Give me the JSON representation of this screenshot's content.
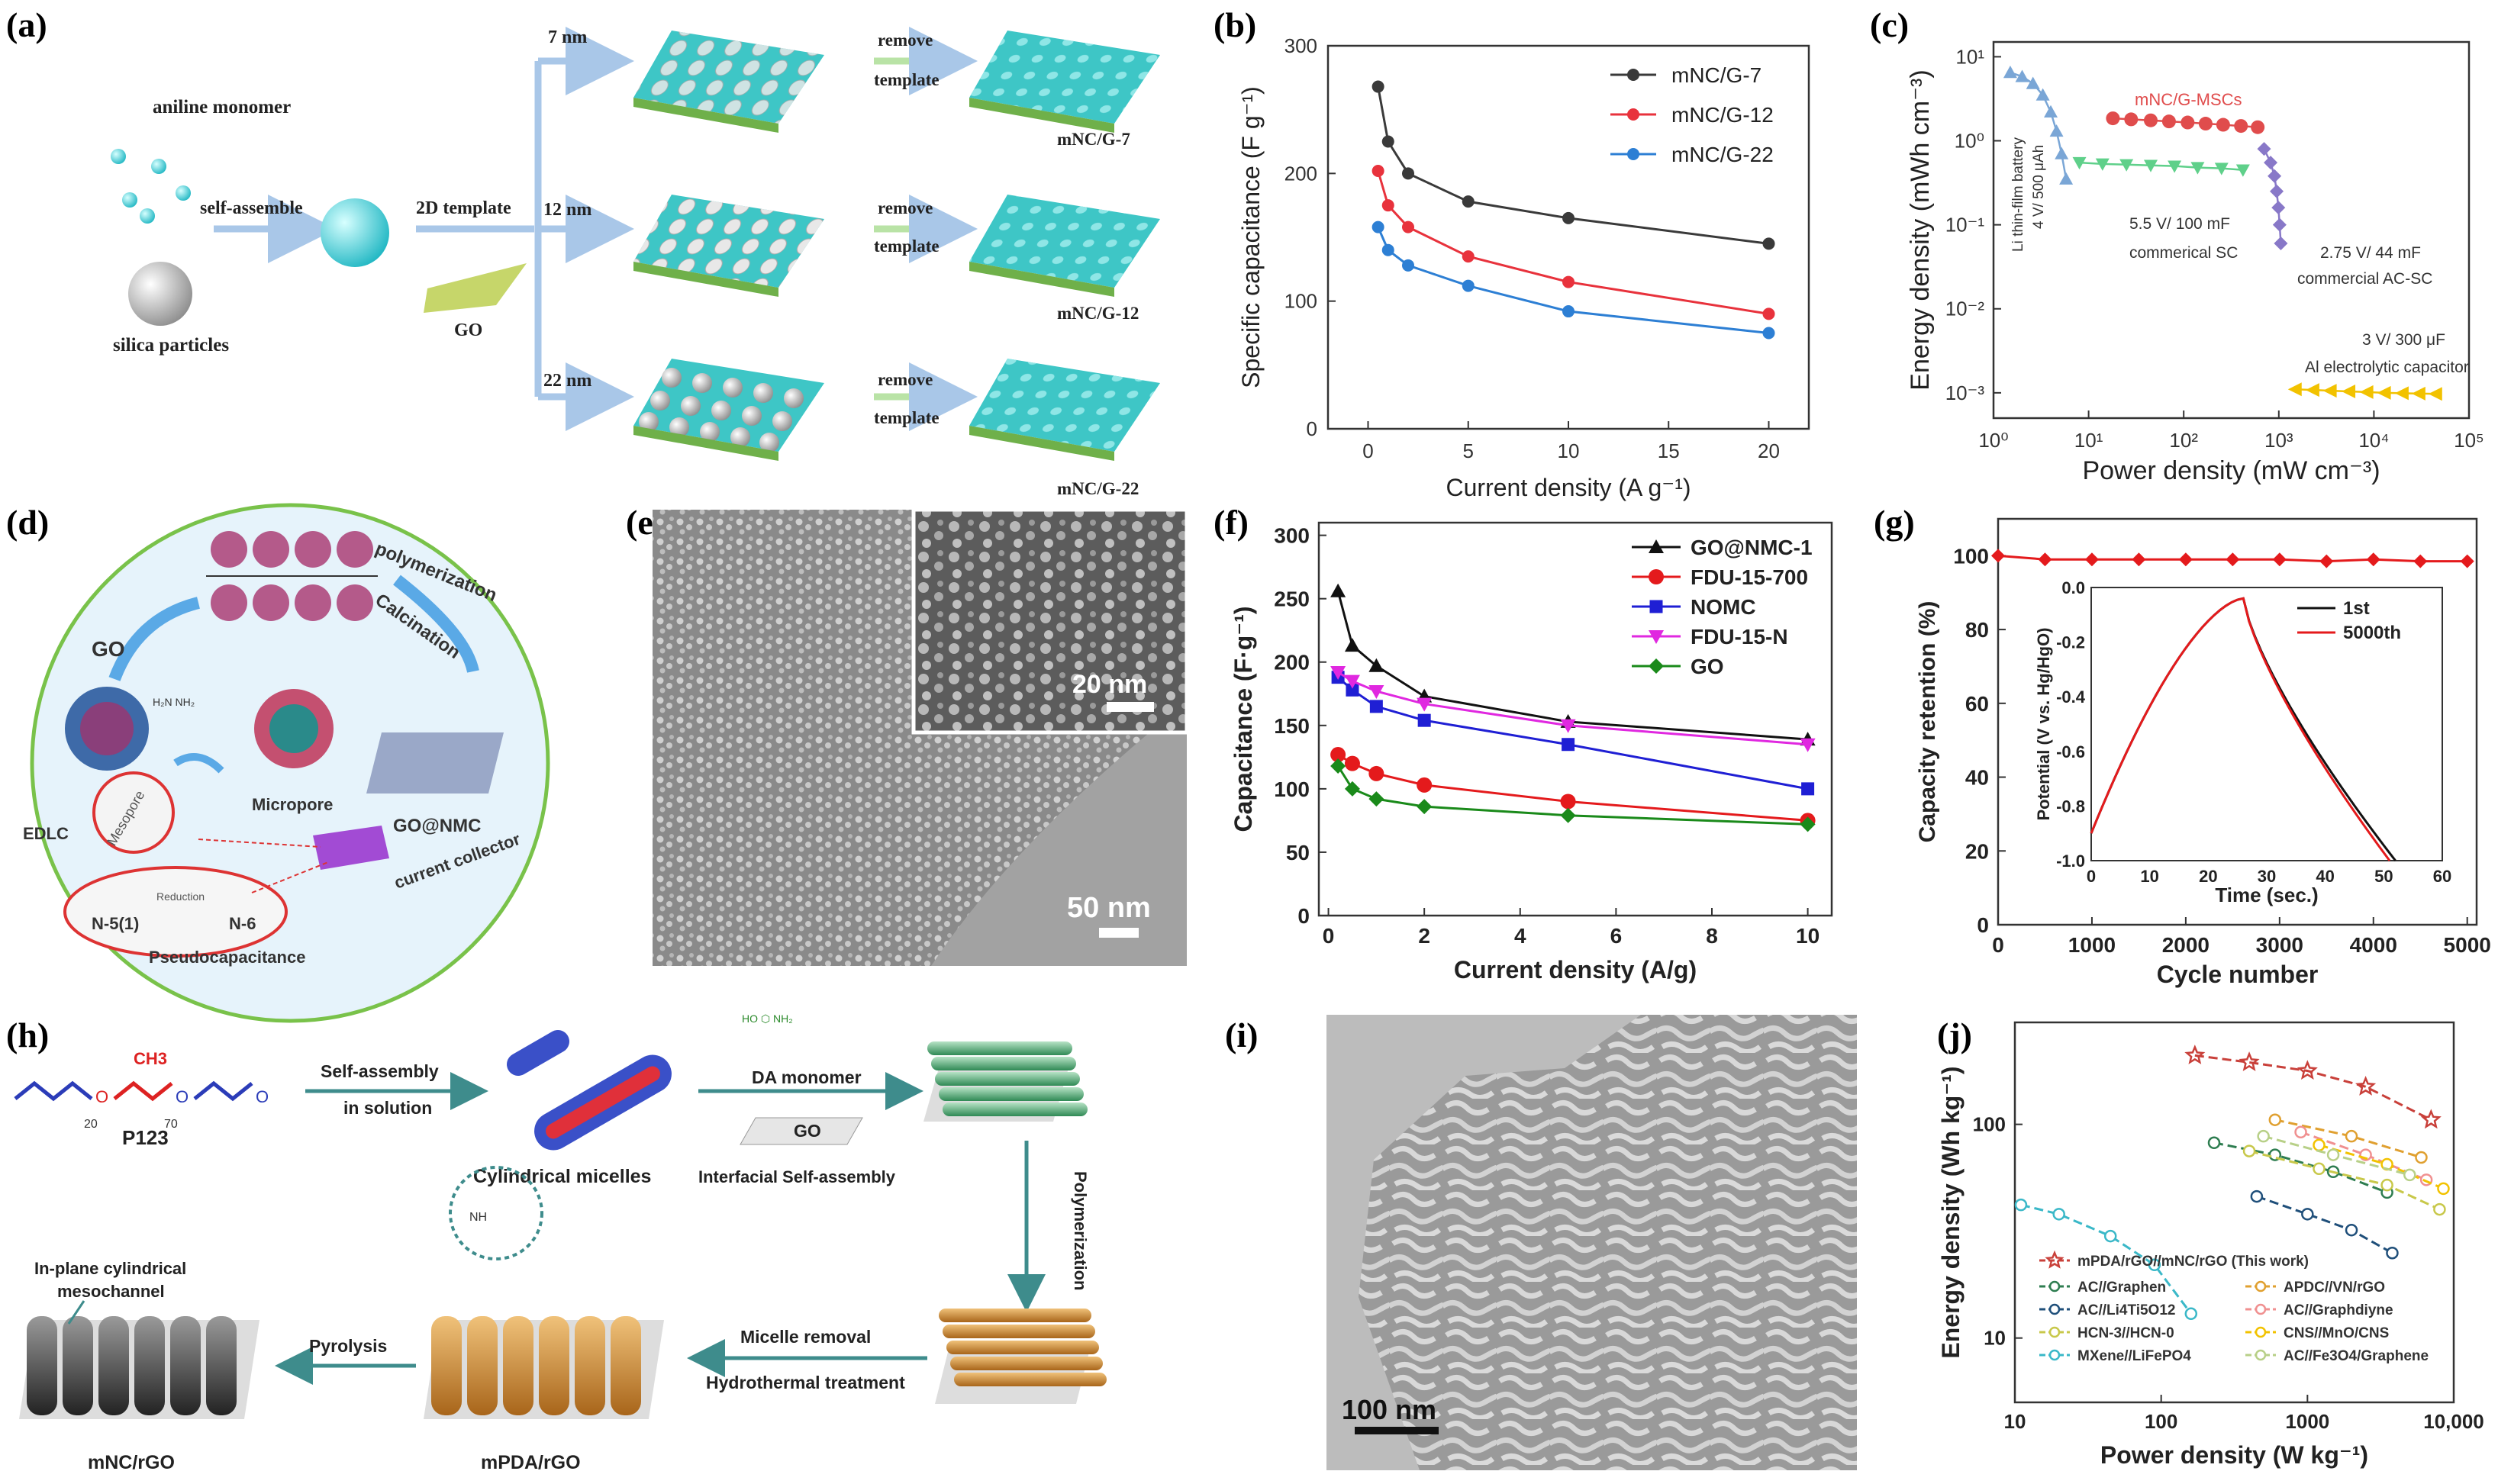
{
  "panel_labels": {
    "a": "(a)",
    "b": "(b)",
    "c": "(c)",
    "d": "(d)",
    "e": "(e)",
    "f": "(f)",
    "g": "(g)",
    "h": "(h)",
    "i": "(i)",
    "j": "(j)"
  },
  "panel_a": {
    "aniline": "aniline monomer",
    "silica": "silica particles",
    "self_assemble": "self-assemble",
    "template": "2D template",
    "go": "GO",
    "size_7": "7 nm",
    "size_12": "12 nm",
    "size_22": "22 nm",
    "remove": "remove",
    "template_word": "template",
    "out_7": "mNC/G-7",
    "out_12": "mNC/G-12",
    "out_22": "mNC/G-22"
  },
  "panel_c_labels": {
    "msc": "mNC/G-MSCs",
    "li": "Li thin-film battery",
    "li_spec": "4 V/ 500 μAh",
    "sc1": "5.5 V/ 100 mF",
    "sc1b": "commerical SC",
    "sc2": "2.75 V/ 44 mF",
    "sc2b": "commercial AC-SC",
    "al1": "3 V/ 300 μF",
    "al2": "Al electrolytic capacitor"
  },
  "panel_d": {
    "go": "GO",
    "polymerization": "polymerization",
    "calcination": "Calcination",
    "micropore": "Micropore",
    "mesopore": "Mesopore",
    "edlc": "EDLC",
    "gonmc": "GO@NMC",
    "current_collector": "current collector",
    "n5": "N-5(1)",
    "n6": "N-6",
    "reduction": "Reduction",
    "pseudo": "Pseudocapacitance"
  },
  "panel_e": {
    "scale_main": "50 nm",
    "scale_inset": "20 nm"
  },
  "panel_h": {
    "p123": "P123",
    "self_assembly": "Self-assembly",
    "in_solution": "in solution",
    "cyl": "Cylindrical micelles",
    "da": "DA monomer",
    "go": "GO",
    "interfacial": "Interfacial Self-assembly",
    "polymerization": "Polymerization",
    "micelle_removal": "Micelle removal",
    "hydrothermal": "Hydrothermal treatment",
    "pyrolysis": "Pyrolysis",
    "inplane": "In-plane cylindrical",
    "mesochannel": "mesochannel",
    "mpda": "mPDA/rGO",
    "mnc": "mNC/rGO",
    "sub_20": "20",
    "sub_70": "70",
    "ch3": "CH3"
  },
  "panel_i": {
    "scale": "100 nm"
  },
  "chart_data": [
    {
      "id": "b",
      "type": "line",
      "xlabel": "Current density (A g⁻¹)",
      "ylabel": "Specific capacitance (F g⁻¹)",
      "xlim": [
        -2,
        22
      ],
      "ylim": [
        0,
        300
      ],
      "xticks": [
        0,
        5,
        10,
        15,
        20
      ],
      "yticks": [
        0,
        100,
        200,
        300
      ],
      "series": [
        {
          "name": "mNC/G-7",
          "color": "#3a3a3a",
          "x": [
            0.5,
            1,
            2,
            5,
            10,
            20
          ],
          "y": [
            268,
            225,
            200,
            178,
            165,
            145
          ]
        },
        {
          "name": "mNC/G-12",
          "color": "#e8323c",
          "x": [
            0.5,
            1,
            2,
            5,
            10,
            20
          ],
          "y": [
            202,
            175,
            158,
            135,
            115,
            90
          ]
        },
        {
          "name": "mNC/G-22",
          "color": "#2d7fd4",
          "x": [
            0.5,
            1,
            2,
            5,
            10,
            20
          ],
          "y": [
            158,
            140,
            128,
            112,
            92,
            75
          ]
        }
      ]
    },
    {
      "id": "c",
      "type": "scatter",
      "xlabel": "Power density (mW cm⁻³)",
      "ylabel": "Energy density (mWh cm⁻³)",
      "xscale": "log",
      "yscale": "log",
      "xlim": [
        1,
        100000
      ],
      "ylim": [
        0.0005,
        15
      ],
      "xtick_labels": [
        "10⁰",
        "10¹",
        "10²",
        "10³",
        "10⁴",
        "10⁵"
      ],
      "ytick_labels": [
        "10⁻³",
        "10⁻²",
        "10⁻¹",
        "10⁰",
        "10¹"
      ],
      "series": [
        {
          "name": "Li thin-film battery",
          "color": "#7aa6d6",
          "x": [
            1.5,
            2,
            2.6,
            3.3,
            4,
            4.6,
            5.2,
            5.8
          ],
          "y": [
            6.5,
            5.8,
            4.8,
            3.5,
            2.2,
            1.3,
            0.7,
            0.35
          ]
        },
        {
          "name": "mNC/G-MSCs",
          "color": "#e04c4c",
          "x": [
            18,
            28,
            45,
            70,
            110,
            170,
            260,
            400,
            600
          ],
          "y": [
            1.85,
            1.8,
            1.75,
            1.7,
            1.65,
            1.6,
            1.55,
            1.5,
            1.45
          ]
        },
        {
          "name": "commerical SC",
          "color": "#5fd08a",
          "x": [
            8,
            14,
            25,
            45,
            80,
            140,
            250,
            420
          ],
          "y": [
            0.55,
            0.53,
            0.52,
            0.51,
            0.5,
            0.48,
            0.47,
            0.45
          ]
        },
        {
          "name": "commercial AC-SC",
          "color": "#8878c8",
          "x": [
            700,
            820,
            900,
            950,
            990,
            1020,
            1050
          ],
          "y": [
            0.8,
            0.55,
            0.38,
            0.25,
            0.16,
            0.1,
            0.06
          ]
        },
        {
          "name": "Al electrolytic capacitor",
          "color": "#f2c200",
          "x": [
            1500,
            2300,
            3500,
            5500,
            8500,
            13000,
            20000,
            30000,
            45000
          ],
          "y": [
            0.0011,
            0.00108,
            0.00106,
            0.00104,
            0.00102,
            0.001,
            0.00099,
            0.00098,
            0.00097
          ]
        }
      ]
    },
    {
      "id": "f",
      "type": "line",
      "xlabel": "Current density (A/g)",
      "ylabel": "Capacitance (F·g⁻¹)",
      "xlim": [
        -0.2,
        10.5
      ],
      "ylim": [
        0,
        310
      ],
      "xticks": [
        0,
        2,
        4,
        6,
        8,
        10
      ],
      "yticks": [
        0,
        50,
        100,
        150,
        200,
        250,
        300
      ],
      "series": [
        {
          "name": "GO@NMC-1",
          "color": "#111111",
          "marker": "triangle",
          "x": [
            0.2,
            0.5,
            1,
            2,
            5,
            10
          ],
          "y": [
            256,
            213,
            197,
            173,
            153,
            139
          ]
        },
        {
          "name": "FDU-15-700",
          "color": "#e41a1c",
          "marker": "circle",
          "x": [
            0.2,
            0.5,
            1,
            2,
            5,
            10
          ],
          "y": [
            127,
            120,
            112,
            103,
            90,
            75
          ]
        },
        {
          "name": "NOMC",
          "color": "#1f1fd4",
          "marker": "square",
          "x": [
            0.2,
            0.5,
            1,
            2,
            5,
            10
          ],
          "y": [
            188,
            178,
            165,
            154,
            135,
            100
          ]
        },
        {
          "name": "FDU-15-N",
          "color": "#e028e0",
          "marker": "triangle-down",
          "x": [
            0.2,
            0.5,
            1,
            2,
            5,
            10
          ],
          "y": [
            192,
            185,
            177,
            167,
            150,
            135
          ]
        },
        {
          "name": "GO",
          "color": "#1a8a1a",
          "marker": "diamond",
          "x": [
            0.2,
            0.5,
            1,
            2,
            5,
            10
          ],
          "y": [
            118,
            100,
            92,
            86,
            79,
            72
          ]
        }
      ]
    },
    {
      "id": "g",
      "type": "line",
      "xlabel": "Cycle number",
      "ylabel": "Capacity retention (%)",
      "xlim": [
        0,
        5100
      ],
      "ylim": [
        0,
        110
      ],
      "xticks": [
        0,
        1000,
        2000,
        3000,
        4000,
        5000
      ],
      "yticks": [
        0,
        20,
        40,
        60,
        80,
        100
      ],
      "series": [
        {
          "name": "retention",
          "color": "#e41a1c",
          "x": [
            0,
            500,
            1000,
            1500,
            2000,
            2500,
            3000,
            3500,
            4000,
            4500,
            5000
          ],
          "y": [
            100,
            99,
            99,
            99,
            99,
            99,
            99,
            98.5,
            99,
            98.5,
            98.5
          ]
        }
      ],
      "inset": {
        "xlabel": "Time (sec.)",
        "ylabel": "Potential (V vs. Hg/HgO)",
        "xlim": [
          0,
          60
        ],
        "ylim": [
          -1.0,
          0.0
        ],
        "xticks": [
          0,
          10,
          20,
          30,
          40,
          50,
          60
        ],
        "yticks": [
          -1.0,
          -0.8,
          -0.6,
          -0.4,
          -0.2,
          0.0
        ],
        "series": [
          {
            "name": "1st",
            "color": "#111111",
            "x": [
              0,
              26,
              52
            ],
            "y": [
              -0.9,
              -0.04,
              -1.0
            ]
          },
          {
            "name": "5000th",
            "color": "#e41a1c",
            "x": [
              0,
              26,
              51
            ],
            "y": [
              -0.9,
              -0.04,
              -1.0
            ]
          }
        ]
      }
    },
    {
      "id": "j",
      "type": "scatter",
      "xlabel": "Power density (W kg⁻¹)",
      "ylabel": "Energy density (Wh kg⁻¹)",
      "xscale": "log",
      "yscale": "log",
      "xlim": [
        10,
        10000
      ],
      "ylim": [
        5,
        300
      ],
      "xtick_labels": [
        "10",
        "100",
        "1000",
        "10,000"
      ],
      "ytick_labels": [
        "10",
        "100"
      ],
      "series": [
        {
          "name": "mPDA/rGO//mNC/rGO (This work)",
          "color": "#c9403a",
          "marker": "star",
          "x": [
            170,
            400,
            1000,
            2500,
            7000
          ],
          "y": [
            210,
            195,
            178,
            150,
            105
          ]
        },
        {
          "name": "AC//Graphen",
          "color": "#2e7d50",
          "marker": "circle",
          "x": [
            230,
            600,
            1500,
            3500
          ],
          "y": [
            82,
            72,
            60,
            48
          ]
        },
        {
          "name": "AC//Li4Ti5O12",
          "color": "#1f4f7a",
          "marker": "circle",
          "x": [
            450,
            1000,
            2000,
            3800
          ],
          "y": [
            46,
            38,
            32,
            25
          ]
        },
        {
          "name": "HCN-3//HCN-0",
          "color": "#c8c84a",
          "marker": "circle",
          "x": [
            400,
            1200,
            3500,
            8000
          ],
          "y": [
            75,
            62,
            52,
            40
          ]
        },
        {
          "name": "MXene//LiFePO4",
          "color": "#3ab8c8",
          "marker": "circle",
          "x": [
            11,
            20,
            45,
            90,
            160
          ],
          "y": [
            42,
            38,
            30,
            22,
            13
          ]
        },
        {
          "name": "APDC//VN/rGO",
          "color": "#e0a030",
          "marker": "circle",
          "x": [
            600,
            2000,
            6000
          ],
          "y": [
            105,
            88,
            70
          ]
        },
        {
          "name": "AC//Graphdiyne",
          "color": "#f09090",
          "marker": "circle",
          "x": [
            900,
            2500,
            6500
          ],
          "y": [
            92,
            72,
            55
          ]
        },
        {
          "name": "CNS//MnO/CNS",
          "color": "#f2c200",
          "marker": "circle",
          "x": [
            1200,
            3500,
            8500
          ],
          "y": [
            80,
            65,
            50
          ]
        },
        {
          "name": "AC//Fe3O4/Graphene",
          "color": "#b8d088",
          "marker": "circle",
          "x": [
            500,
            1500,
            5000
          ],
          "y": [
            88,
            72,
            58
          ]
        }
      ],
      "legend_labels": [
        {
          "t": "mPDA/rGO//mNC/rGO (This work)"
        },
        {
          "t": "AC//Graphen"
        },
        {
          "t": "APDC//VN/rGO"
        },
        {
          "t": "AC//Li4Ti5O12"
        },
        {
          "t": "AC//Graphdiyne"
        },
        {
          "t": "HCN-3//HCN-0"
        },
        {
          "t": "CNS//MnO/CNS"
        },
        {
          "t": "MXene//LiFePO4"
        },
        {
          "t": "AC//Fe3O4/Graphene"
        }
      ]
    }
  ]
}
